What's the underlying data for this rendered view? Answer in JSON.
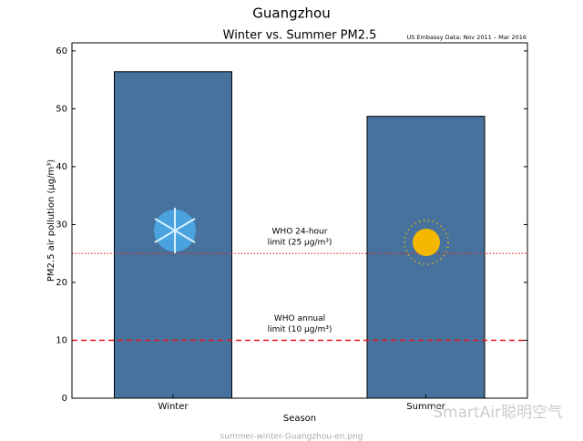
{
  "chart_data": {
    "type": "bar",
    "suptitle": "Guangzhou",
    "title": "Winter vs. Summer PM2.5",
    "source": "US Embassy Data: Nov 2011 – Mar 2016",
    "x_label": "Season",
    "y_label": "PM2.5 air pollution (μg/m³)",
    "categories": [
      "Winter",
      "Summer"
    ],
    "values": [
      56.4,
      48.7
    ],
    "color": "#48729e",
    "ylim": [
      0,
      61.4
    ],
    "yticks": [
      0,
      10,
      20,
      30,
      40,
      50,
      60
    ],
    "reference_lines": [
      {
        "value": 25,
        "style": "dotted",
        "color": "#d62728",
        "label": [
          "WHO 24-hour",
          "limit (25 μg/m³)"
        ]
      },
      {
        "value": 10,
        "style": "dashed",
        "color": "#e8141a",
        "label": [
          "WHO annual",
          "limit (10 μg/m³)"
        ]
      }
    ],
    "watermarks": [
      "SmartAir聪明空气",
      "summer-winter-Guangzhou-en.png"
    ]
  }
}
